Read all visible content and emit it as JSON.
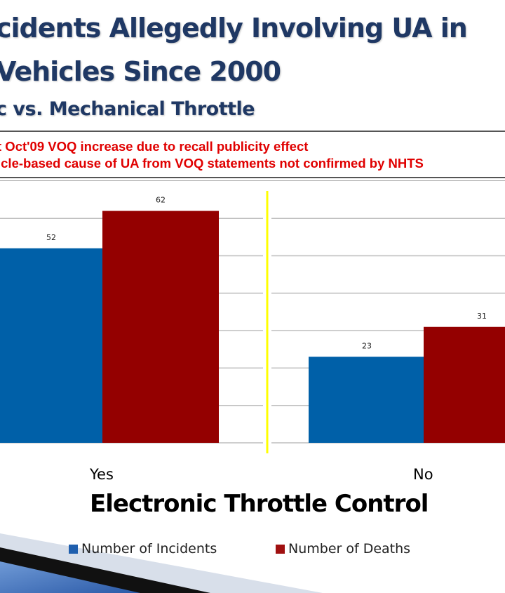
{
  "title_line1": "cidents Allegedly Involving UA in",
  "title_line2": "Vehicles Since 2000",
  "subtitle": "c vs. Mechanical  Throttle",
  "notes": [
    "t Oct'09 VOQ increase due to recall publicity effect",
    "icle-based cause of UA from VOQ statements not confirmed by NHTS"
  ],
  "chart_data": {
    "type": "bar",
    "categories": [
      "Yes",
      "No"
    ],
    "xlabel": "Electronic Throttle Control",
    "series": [
      {
        "name": "Number of Incidents",
        "values": [
          52,
          23
        ],
        "color": "#0060a8"
      },
      {
        "name": "Number of Deaths",
        "values": [
          62,
          31
        ],
        "color": "#940000"
      }
    ],
    "ylim": [
      0,
      70
    ],
    "grid": true,
    "gridline_step": 10,
    "divider_color": "#ffff00",
    "legend": "bottom"
  }
}
